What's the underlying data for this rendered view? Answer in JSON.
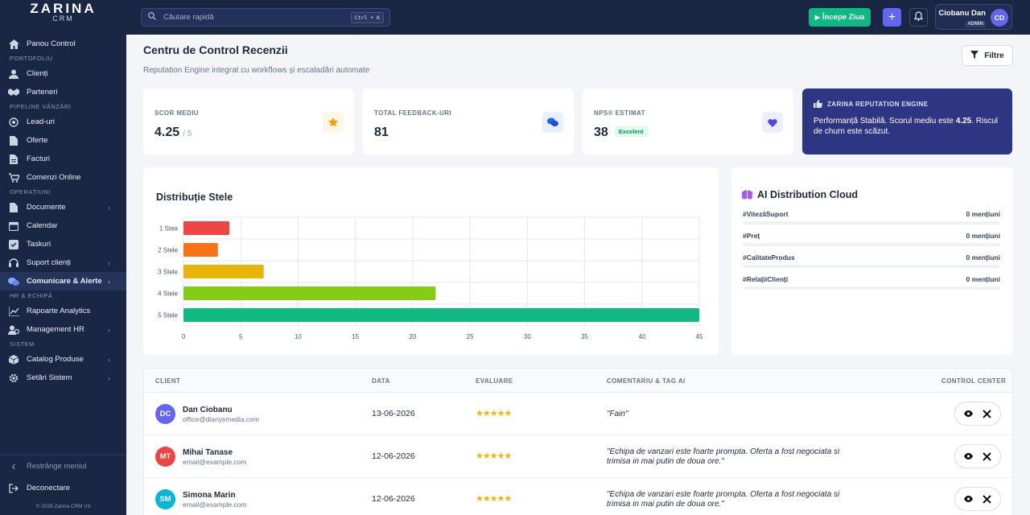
{
  "app": {
    "logo_main": "ZARINA",
    "logo_sub": "CRM",
    "copyright": "© 2026 Zarina CRM V3"
  },
  "sidebar": {
    "top_item": {
      "label": "Panou Control",
      "icon": "home-icon"
    },
    "sections": [
      {
        "title": "PORTOFOLIU",
        "items": [
          {
            "label": "Clienți",
            "icon": "user-icon"
          },
          {
            "label": "Parteneri",
            "icon": "handshake-icon"
          }
        ]
      },
      {
        "title": "PIPELINE VÂNZĂRI",
        "items": [
          {
            "label": "Lead-uri",
            "icon": "target-icon"
          },
          {
            "label": "Oferte",
            "icon": "file-icon"
          },
          {
            "label": "Facturi",
            "icon": "invoice-icon"
          },
          {
            "label": "Comenzi Online",
            "icon": "cart-icon"
          }
        ]
      },
      {
        "title": "OPERAȚIUNI",
        "items": [
          {
            "label": "Documente",
            "icon": "document-icon",
            "chevron": true
          },
          {
            "label": "Calendar",
            "icon": "calendar-icon"
          },
          {
            "label": "Taskuri",
            "icon": "checkbox-icon"
          },
          {
            "label": "Suport clienți",
            "icon": "headset-icon",
            "chevron": true
          },
          {
            "label": "Comunicare & Alerte",
            "icon": "chat-icon",
            "chevron": true,
            "active": true
          }
        ]
      },
      {
        "title": "HR & ECHIPĂ",
        "items": [
          {
            "label": "Rapoarte Analytics",
            "icon": "analytics-icon"
          },
          {
            "label": "Management HR",
            "icon": "team-icon",
            "chevron": true
          }
        ]
      },
      {
        "title": "SISTEM",
        "items": [
          {
            "label": "Catalog Produse",
            "icon": "box-icon",
            "chevron": true
          },
          {
            "label": "Setări Sistem",
            "icon": "gear-icon",
            "chevron": true
          }
        ]
      }
    ],
    "collapse_label": "Restrânge meniul",
    "logout_label": "Deconectare"
  },
  "topbar": {
    "search_placeholder": "Căutare rapidă",
    "search_shortcut": "Ctrl + K",
    "start_day_label": "Începe Ziua",
    "user_name": "Ciobanu Dan",
    "user_role": "ADMIN",
    "user_initials": "CD"
  },
  "page": {
    "title": "Centru de Control Recenzii",
    "subtitle": "Reputation Engine integrat cu workflows și escaladări automate",
    "filter_label": "Filtre"
  },
  "kpis": [
    {
      "label": "SCOR MEDIU",
      "value": "4.25",
      "suffix": "/ 5",
      "icon": "star-icon",
      "icon_color": "#f59e0b",
      "icon_bg": "#fef6e4"
    },
    {
      "label": "TOTAL FEEDBACK-URI",
      "value": "81",
      "icon": "chat-bubbles-icon",
      "icon_color": "#2563eb",
      "icon_bg": "#e8f0fe"
    },
    {
      "label": "NPS® ESTIMAT",
      "value": "38",
      "badge": "Excelent",
      "icon": "heart-icon",
      "icon_color": "#4f46e5",
      "icon_bg": "#eceefe"
    }
  ],
  "engine": {
    "title": "ZARINA REPUTATION ENGINE",
    "text_before": "Performanță Stabilă. Scorul mediu este ",
    "text_bold": "4.25",
    "text_after": ". Riscul de churn este scăzut."
  },
  "chart_data": {
    "type": "bar",
    "orientation": "horizontal",
    "title": "Distribuție Stele",
    "categories": [
      "1 Stea",
      "2 Stele",
      "3 Stele",
      "4 Stele",
      "5 Stele"
    ],
    "values": [
      4,
      3,
      7,
      22,
      45
    ],
    "colors": [
      "#ef4444",
      "#f97316",
      "#eab308",
      "#84cc16",
      "#10b981"
    ],
    "xlim": [
      0,
      45
    ],
    "xticks": [
      0,
      5,
      10,
      15,
      20,
      25,
      30,
      35,
      40,
      45
    ],
    "grid": true,
    "legend": "none"
  },
  "cloud": {
    "title": "AI Distribution Cloud",
    "tags": [
      {
        "name": "#VitezăSuport",
        "count": "0 mențiuni"
      },
      {
        "name": "#Preț",
        "count": "0 mențiuni"
      },
      {
        "name": "#CalitateProdus",
        "count": "0 mențiuni"
      },
      {
        "name": "#RelațiiClienți",
        "count": "0 mențiuni"
      }
    ]
  },
  "table": {
    "headers": [
      "CLIENT",
      "DATA",
      "EVALUARE",
      "COMENTARIU & TAG AI",
      "CONTROL CENTER"
    ],
    "rows": [
      {
        "initials": "DC",
        "avatar_color": "#6366f1",
        "name": "Dan Ciobanu",
        "email": "office@dianysmedia.com",
        "date": "13-06-2026",
        "stars": "★★★★★",
        "rating": 5,
        "comment": "\"Fain\""
      },
      {
        "initials": "MT",
        "avatar_color": "#ef4444",
        "name": "Mihai Tanase",
        "email": "email@example.com",
        "date": "12-06-2026",
        "stars": "★★★★★",
        "rating": 5,
        "comment": "\"Echipa de vanzari este foarte prompta. Oferta a fost negociata si trimisa in mai putin de doua ore.\""
      },
      {
        "initials": "SM",
        "avatar_color": "#06b6d4",
        "name": "Simona Marin",
        "email": "email@example.com",
        "date": "12-06-2026",
        "stars": "★★★★★",
        "rating": 5,
        "comment": "\"Echipa de vanzari este foarte prompta. Oferta a fost negociata si trimisa in mai putin de doua ore.\""
      }
    ]
  }
}
